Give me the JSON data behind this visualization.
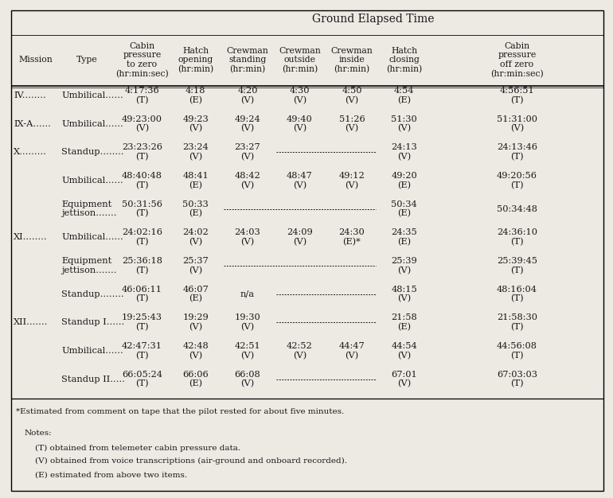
{
  "title": "Ground Elapsed Time",
  "col_headers": [
    "Mission",
    "Type",
    "Cabin\npressure\nto zero\n(hr:min:sec)",
    "Hatch\nopening\n(hr:min)",
    "Crewman\nstanding\n(hr:min)",
    "Crewman\noutside\n(hr:min)",
    "Crewman\ninside\n(hr:min)",
    "Hatch\nclosing\n(hr:min)",
    "Cabin\npressure\noff zero\n(hr:min:sec)"
  ],
  "rows": [
    {
      "mission": "IV",
      "type": "Umbilical",
      "cabin_zero": "4:17:36\n(T)",
      "hatch_open": "4:18\n(E)",
      "crew_stand": "4:20\n(V)",
      "crew_out": "4:30\n(V)",
      "crew_in": "4:50\n(V)",
      "hatch_close": "4:54\n(E)",
      "cabin_off": "4:56:51\n(T)"
    },
    {
      "mission": "IX-A",
      "type": "Umbilical",
      "cabin_zero": "49:23:00\n(V)",
      "hatch_open": "49:23\n(V)",
      "crew_stand": "49:24\n(V)",
      "crew_out": "49:40\n(V)",
      "crew_in": "51:26\n(V)",
      "hatch_close": "51:30\n(V)",
      "cabin_off": "51:31:00\n(V)"
    },
    {
      "mission": "X",
      "type": "Standup",
      "cabin_zero": "23:23:26\n(T)",
      "hatch_open": "23:24\n(V)",
      "crew_stand": "23:27\n(V)",
      "crew_out": "DASH",
      "crew_in": "DASH",
      "hatch_close": "24:13\n(V)",
      "cabin_off": "24:13:46\n(T)"
    },
    {
      "mission": "",
      "type": "Umbilical",
      "cabin_zero": "48:40:48\n(T)",
      "hatch_open": "48:41\n(E)",
      "crew_stand": "48:42\n(V)",
      "crew_out": "48:47\n(V)",
      "crew_in": "49:12\n(V)",
      "hatch_close": "49:20\n(E)",
      "cabin_off": "49:20:56\n(T)"
    },
    {
      "mission": "",
      "type": "Equipment\njettison",
      "cabin_zero": "50:31:56\n(T)",
      "hatch_open": "50:33\n(E)",
      "crew_stand": "DASH",
      "crew_out": "DASH",
      "crew_in": "DASH",
      "hatch_close": "50:34\n(E)",
      "cabin_off": "50:34:48"
    },
    {
      "mission": "XI",
      "type": "Umbilical",
      "cabin_zero": "24:02:16\n(T)",
      "hatch_open": "24:02\n(V)",
      "crew_stand": "24:03\n(V)",
      "crew_out": "24:09\n(V)",
      "crew_in": "24:30\n(E)*",
      "hatch_close": "24:35\n(E)",
      "cabin_off": "24:36:10\n(T)"
    },
    {
      "mission": "",
      "type": "Equipment\njettison",
      "cabin_zero": "25:36:18\n(T)",
      "hatch_open": "25:37\n(V)",
      "crew_stand": "DASH",
      "crew_out": "DASH",
      "crew_in": "DASH",
      "hatch_close": "25:39\n(V)",
      "cabin_off": "25:39:45\n(T)"
    },
    {
      "mission": "",
      "type": "Standup",
      "cabin_zero": "46:06:11\n(T)",
      "hatch_open": "46:07\n(E)",
      "crew_stand": "n/a",
      "crew_out": "DASH",
      "crew_in": "DASH",
      "hatch_close": "48:15\n(V)",
      "cabin_off": "48:16:04\n(T)"
    },
    {
      "mission": "XII",
      "type": "Standup I",
      "cabin_zero": "19:25:43\n(T)",
      "hatch_open": "19:29\n(V)",
      "crew_stand": "19:30\n(V)",
      "crew_out": "DASH",
      "crew_in": "DASH",
      "hatch_close": "21:58\n(E)",
      "cabin_off": "21:58:30\n(T)"
    },
    {
      "mission": "",
      "type": "Umbilical",
      "cabin_zero": "42:47:31\n(T)",
      "hatch_open": "42:48\n(V)",
      "crew_stand": "42:51\n(V)",
      "crew_out": "42:52\n(V)",
      "crew_in": "44:47\n(V)",
      "hatch_close": "44:54\n(V)",
      "cabin_off": "44:56:08\n(T)"
    },
    {
      "mission": "",
      "type": "Standup II",
      "cabin_zero": "66:05:24\n(T)",
      "hatch_open": "66:06\n(E)",
      "crew_stand": "66:08\n(V)",
      "crew_out": "DASH",
      "crew_in": "DASH",
      "hatch_close": "67:01\n(V)",
      "cabin_off": "67:03:03\n(T)"
    }
  ],
  "mission_display": [
    "IV........",
    "IX-A......",
    "X.........",
    "",
    "",
    "XI........",
    "",
    "",
    "XII.......",
    "",
    ""
  ],
  "type_display": [
    "Umbilical......",
    "Umbilical......",
    "Standup........",
    "Umbilical......",
    "Equipment\njettison.......",
    "Umbilical......",
    "Equipment\njettison.......",
    "Standup........",
    "Standup I......",
    "Umbilical......",
    "Standup II....."
  ],
  "footnote_star": "*Estimated from comment on tape that the pilot rested for about five minutes.",
  "notes_header": "Notes:",
  "notes": [
    "    (T) obtained from telemeter cabin pressure data.",
    "    (V) obtained from voice transcriptions (air-ground and onboard recorded).",
    "    (E) estimated from above two items."
  ],
  "bg_color": "#ede9e3",
  "text_color": "#1a1a1a"
}
